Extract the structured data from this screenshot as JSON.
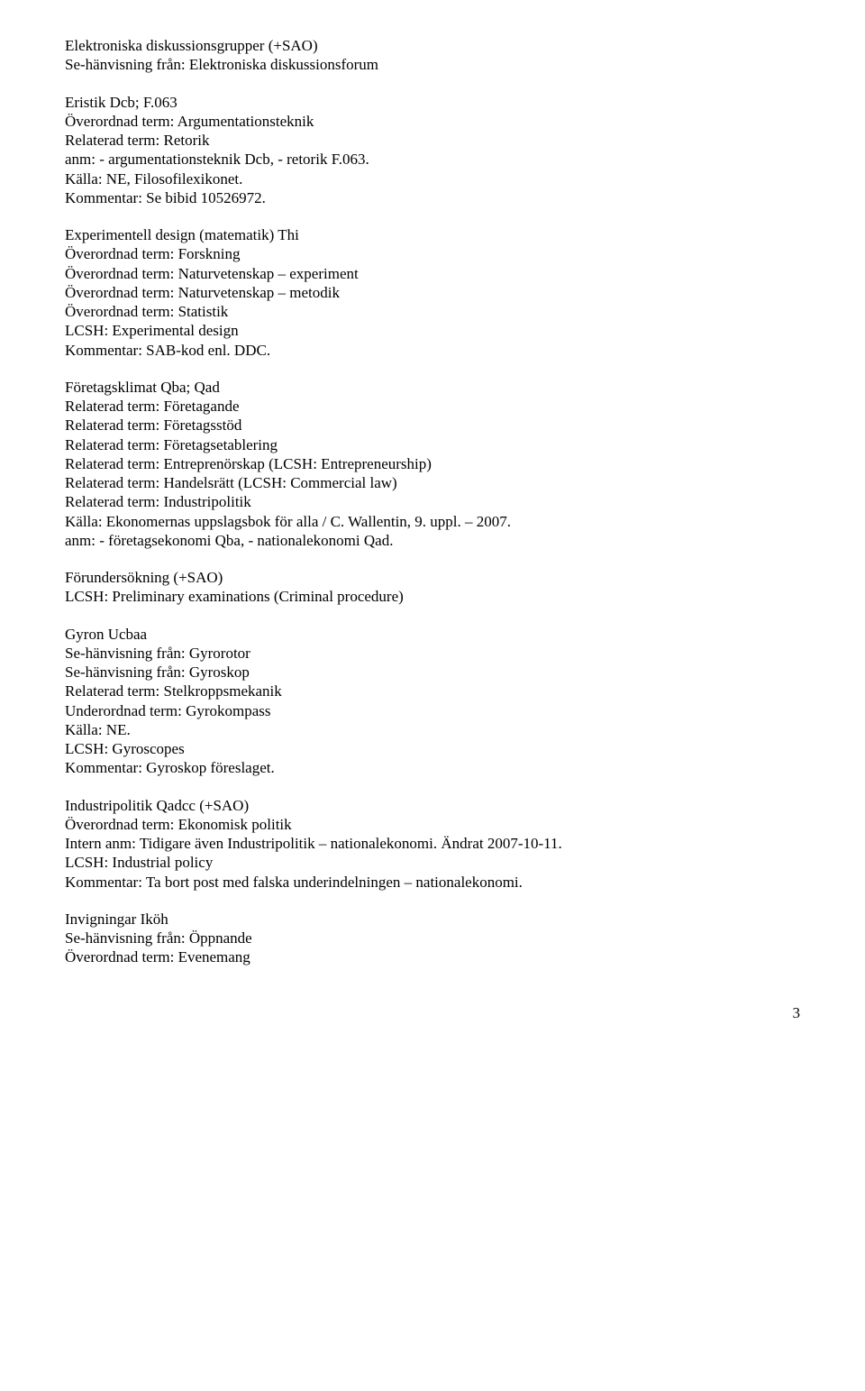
{
  "entries": [
    {
      "lines": [
        "Elektroniska diskussionsgrupper (+SAO)",
        "Se-hänvisning från: Elektroniska diskussionsforum"
      ]
    },
    {
      "lines": [
        "Eristik Dcb; F.063",
        "Överordnad term: Argumentationsteknik",
        "Relaterad term: Retorik",
        "anm: - argumentationsteknik Dcb, - retorik F.063.",
        "Källa: NE, Filosofilexikonet.",
        "Kommentar: Se bibid 10526972."
      ]
    },
    {
      "lines": [
        "Experimentell design (matematik) Thi",
        "Överordnad term: Forskning",
        "Överordnad term: Naturvetenskap – experiment",
        "Överordnad term: Naturvetenskap – metodik",
        "Överordnad term: Statistik",
        "LCSH: Experimental design",
        "Kommentar: SAB-kod enl. DDC."
      ]
    },
    {
      "lines": [
        "Företagsklimat Qba; Qad",
        "Relaterad term: Företagande",
        "Relaterad term: Företagsstöd",
        "Relaterad term: Företagsetablering",
        "Relaterad term: Entreprenörskap (LCSH: Entrepreneurship)",
        "Relaterad term: Handelsrätt (LCSH: Commercial law)",
        "Relaterad term: Industripolitik",
        "Källa: Ekonomernas uppslagsbok för alla / C. Wallentin, 9. uppl. – 2007.",
        "anm: - företagsekonomi Qba, - nationalekonomi Qad."
      ]
    },
    {
      "lines": [
        "Förundersökning (+SAO)",
        "LCSH: Preliminary examinations (Criminal procedure)"
      ]
    },
    {
      "lines": [
        "Gyron Ucbaa",
        "Se-hänvisning från: Gyrorotor",
        "Se-hänvisning från: Gyroskop",
        "Relaterad term: Stelkroppsmekanik",
        "Underordnad term: Gyrokompass",
        "Källa: NE.",
        "LCSH: Gyroscopes",
        "Kommentar: Gyroskop föreslaget."
      ]
    },
    {
      "lines": [
        "Industripolitik Qadcc (+SAO)",
        "Överordnad term: Ekonomisk politik",
        "Intern anm: Tidigare även Industripolitik – nationalekonomi. Ändrat 2007-10-11.",
        "LCSH: Industrial policy",
        "Kommentar: Ta bort post med falska underindelningen – nationalekonomi."
      ]
    },
    {
      "lines": [
        "Invigningar Iköh",
        "Se-hänvisning från: Öppnande",
        "Överordnad term: Evenemang"
      ]
    }
  ],
  "page_number": "3"
}
